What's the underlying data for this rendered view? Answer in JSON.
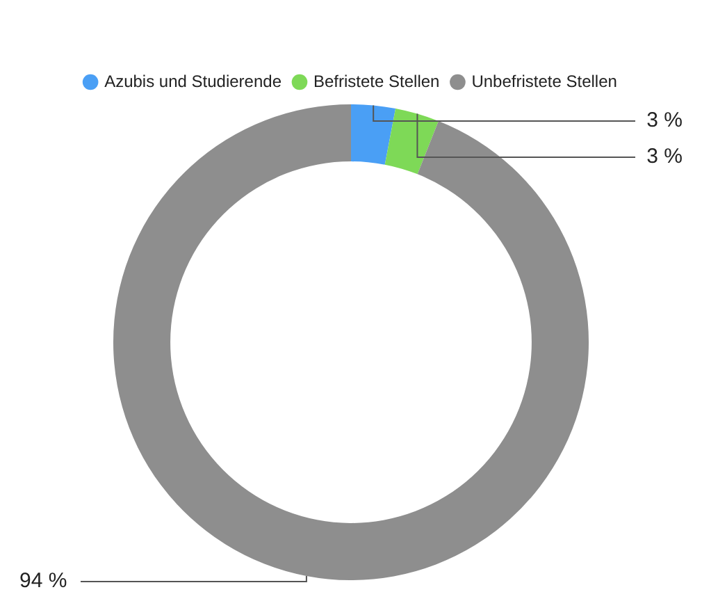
{
  "chart_data": {
    "type": "donut",
    "categories": [
      "Azubis und Studierende",
      "Befristete Stellen",
      "Unbefristete Stellen"
    ],
    "values": [
      3,
      3,
      94
    ],
    "colors": [
      "#4a9ff5",
      "#7ed957",
      "#8e8e8e"
    ],
    "value_labels": [
      "3 %",
      "3 %",
      "94 %"
    ],
    "legend": "top"
  }
}
